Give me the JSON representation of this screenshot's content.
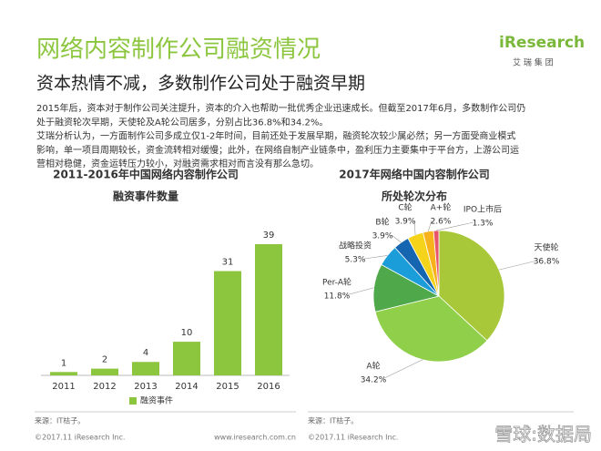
{
  "header": {
    "title": "网络内容制作公司融资情况",
    "subtitle": "资本热情不减，多数制作公司处于融资早期"
  },
  "logo": {
    "brand": "iResearch",
    "tagline": "艾 瑞 集 团"
  },
  "body": {
    "lines": [
      "2015年后，资本对于制作公司关注提升，资本的介入也帮助一批优秀企业迅速成长。但截至2017年6月，多数制作公司仍",
      "处于融资轮次早期，天使轮及A轮公司居多，分别占比36.8%和34.2%。",
      "艾瑞分析认为，一方面制作公司多成立仅1-2年时间，目前还处于发展早期，融资轮次较少属必然；另一方面受商业模式",
      "影响，单一项目周期较长，资金流转相对缓慢；此外，在网络自制产业链条中，盈利压力主要集中于平台方，上游公司运",
      "营相对稳健，资金运转压力较小，对融资需求相对而言没有那么急切。"
    ]
  },
  "chart_data": [
    {
      "type": "bar",
      "title": "2011-2016年中国网络内容制作公司",
      "subtitle": "融资事件数量",
      "categories": [
        "2011",
        "2012",
        "2013",
        "2014",
        "2015",
        "2016"
      ],
      "series": [
        {
          "name": "融资事件",
          "color": "#8cc63f",
          "values": [
            1,
            2,
            4,
            10,
            31,
            39
          ]
        }
      ],
      "source": "来源：IT桔子。"
    },
    {
      "type": "pie",
      "title": "2017年网络中国内容制作公司",
      "subtitle": "所处轮次分布",
      "categories": [
        "天使轮",
        "A轮",
        "Per-A轮",
        "战略投资",
        "B轮",
        "C轮",
        "A+轮",
        "IPO上市后"
      ],
      "values": [
        36.8,
        34.2,
        11.8,
        5.3,
        3.9,
        3.9,
        2.6,
        1.3
      ],
      "value_labels": [
        "36.8%",
        "34.2%",
        "11.8%",
        "5.3%",
        "3.9%",
        "3.9%",
        "2.6%",
        "1.3%"
      ],
      "colors": [
        "#a8c83a",
        "#8fcf4a",
        "#4fa84a",
        "#1b9dd9",
        "#1565b0",
        "#f5d31a",
        "#f7b21c",
        "#e8546a"
      ],
      "source": "来源：IT桔子。"
    }
  ],
  "footer": {
    "copyright_left": "©2017.11 iResearch Inc.",
    "website": "www.iresearch.com.cn",
    "copyright_right": "©2017.11 iResearch Inc.",
    "watermark": "雪球:数据局"
  }
}
